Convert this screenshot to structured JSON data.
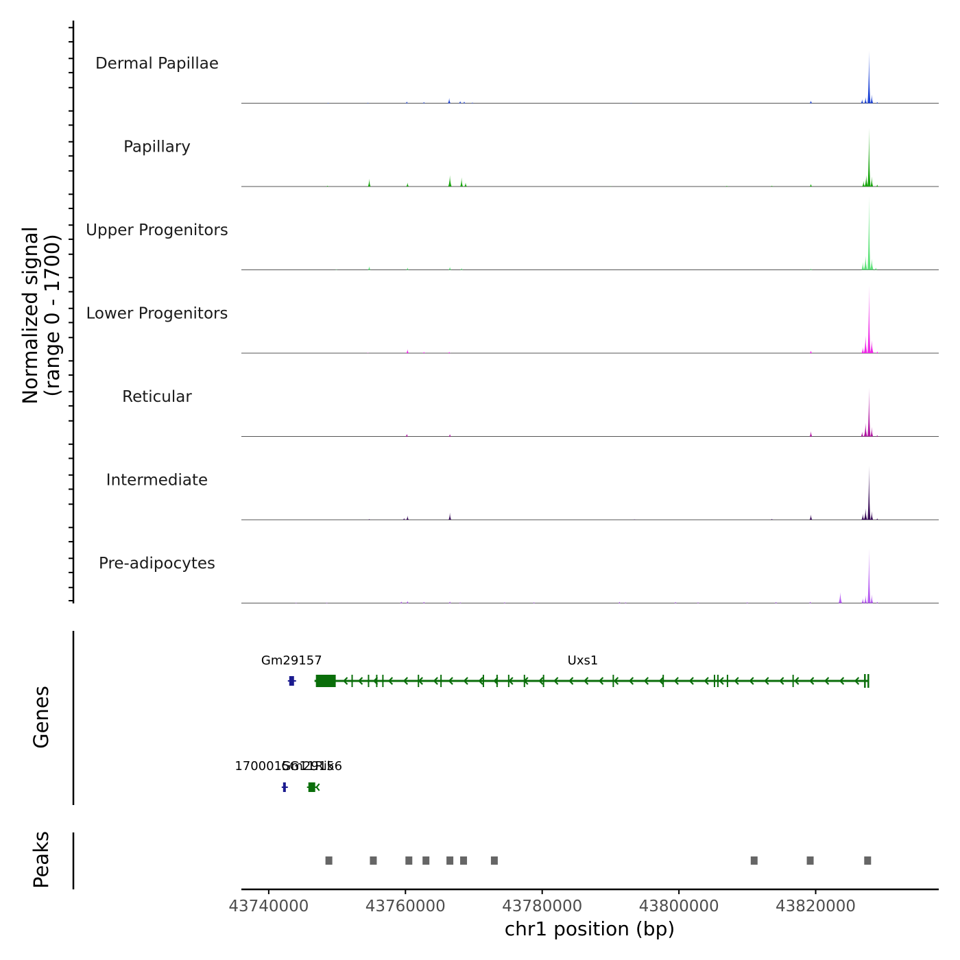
{
  "chart_data": {
    "type": "area",
    "title": "",
    "xlabel": "chr1 position (bp)",
    "ylabel_line1": "Normalized signal",
    "ylabel_line2": "(range 0 - 1700)",
    "yrange": [
      0,
      1700
    ],
    "xlim": [
      43736000,
      43838000
    ],
    "xticks": [
      43740000,
      43760000,
      43780000,
      43800000,
      43820000
    ],
    "xtick_labels": [
      "43740000",
      "43760000",
      "43780000",
      "43800000",
      "43820000"
    ],
    "tracks": [
      {
        "name": "Dermal Papillae",
        "color": "#1f45d6",
        "peaks": [
          [
            43748700,
            10
          ],
          [
            43754500,
            12
          ],
          [
            43760200,
            40
          ],
          [
            43762700,
            25
          ],
          [
            43766400,
            120
          ],
          [
            43768000,
            50
          ],
          [
            43768600,
            40
          ],
          [
            43769800,
            15
          ],
          [
            43793000,
            8
          ],
          [
            43819300,
            60
          ],
          [
            43826800,
            90
          ],
          [
            43827300,
            140
          ],
          [
            43827800,
            1200
          ],
          [
            43828200,
            200
          ],
          [
            43829000,
            25
          ]
        ]
      },
      {
        "name": "Papillary",
        "color": "#1aa510",
        "peaks": [
          [
            43748600,
            18
          ],
          [
            43754700,
            180
          ],
          [
            43760300,
            90
          ],
          [
            43766500,
            260
          ],
          [
            43768200,
            210
          ],
          [
            43768800,
            90
          ],
          [
            43790000,
            8
          ],
          [
            43807000,
            15
          ],
          [
            43813600,
            20
          ],
          [
            43819300,
            60
          ],
          [
            43827000,
            130
          ],
          [
            43827400,
            260
          ],
          [
            43827800,
            1350
          ],
          [
            43828200,
            230
          ],
          [
            43829000,
            45
          ]
        ]
      },
      {
        "name": "Upper Progenitors",
        "color": "#5ee27a",
        "peaks": [
          [
            43749900,
            12
          ],
          [
            43754700,
            80
          ],
          [
            43760300,
            50
          ],
          [
            43766500,
            70
          ],
          [
            43768200,
            40
          ],
          [
            43819300,
            25
          ],
          [
            43826900,
            180
          ],
          [
            43827300,
            320
          ],
          [
            43827800,
            1820
          ],
          [
            43828200,
            260
          ],
          [
            43828800,
            50
          ]
        ]
      },
      {
        "name": "Lower Progenitors",
        "color": "#ee2ae6",
        "peaks": [
          [
            43754500,
            8
          ],
          [
            43760300,
            90
          ],
          [
            43762700,
            30
          ],
          [
            43766400,
            30
          ],
          [
            43819300,
            60
          ],
          [
            43826900,
            140
          ],
          [
            43827300,
            400
          ],
          [
            43827800,
            1550
          ],
          [
            43828200,
            300
          ],
          [
            43829000,
            40
          ]
        ]
      },
      {
        "name": "Reticular",
        "color": "#b21aa3",
        "peaks": [
          [
            43760200,
            60
          ],
          [
            43766500,
            55
          ],
          [
            43819300,
            120
          ],
          [
            43826800,
            110
          ],
          [
            43827300,
            310
          ],
          [
            43827800,
            1120
          ],
          [
            43828200,
            220
          ],
          [
            43829000,
            30
          ]
        ]
      },
      {
        "name": "Intermediate",
        "color": "#3b0f5a",
        "peaks": [
          [
            43754700,
            15
          ],
          [
            43759800,
            40
          ],
          [
            43760300,
            95
          ],
          [
            43766500,
            165
          ],
          [
            43793500,
            10
          ],
          [
            43813600,
            20
          ],
          [
            43819300,
            120
          ],
          [
            43826900,
            140
          ],
          [
            43827300,
            260
          ],
          [
            43827800,
            1240
          ],
          [
            43828200,
            200
          ],
          [
            43829000,
            30
          ]
        ]
      },
      {
        "name": "Pre-adipocytes",
        "color": "#b65cf2",
        "peaks": [
          [
            43744000,
            10
          ],
          [
            43748500,
            12
          ],
          [
            43759400,
            35
          ],
          [
            43760300,
            50
          ],
          [
            43762700,
            30
          ],
          [
            43766500,
            40
          ],
          [
            43768000,
            20
          ],
          [
            43774500,
            20
          ],
          [
            43778800,
            20
          ],
          [
            43791300,
            30
          ],
          [
            43792200,
            20
          ],
          [
            43799500,
            25
          ],
          [
            43802800,
            20
          ],
          [
            43810000,
            20
          ],
          [
            43814200,
            25
          ],
          [
            43819200,
            30
          ],
          [
            43823600,
            250
          ],
          [
            43826900,
            110
          ],
          [
            43827300,
            180
          ],
          [
            43827800,
            1250
          ],
          [
            43828200,
            200
          ],
          [
            43829000,
            30
          ]
        ]
      }
    ],
    "genes_label": "Genes",
    "genes": [
      {
        "name": "Gm29157",
        "start": 43743000,
        "end": 43743700,
        "strand": "+",
        "row": 1,
        "color": "#1b1b8f"
      },
      {
        "name": "Uxs1",
        "start": 43746700,
        "end": 43827700,
        "strand": "-",
        "row": 1,
        "color": "#0a6e0a",
        "exons": [
          43748400,
          43752200,
          43754600,
          43755800,
          43756700,
          43761900,
          43765200,
          43771400,
          43773400,
          43775100,
          43777400,
          43780200,
          43790400,
          43797700,
          43805200,
          43805700,
          43807100,
          43816700
        ]
      },
      {
        "name": "1700015G11Rik",
        "start": 43742100,
        "end": 43742500,
        "strand": "+",
        "row": 2,
        "color": "#1b1b8f"
      },
      {
        "name": "Gm29156",
        "start": 43745800,
        "end": 43746800,
        "strand": "-",
        "row": 2,
        "color": "#0a6e0a"
      }
    ],
    "peaks_label": "Peaks",
    "peak_regions": [
      43748800,
      43755300,
      43760500,
      43763000,
      43766500,
      43768500,
      43773000,
      43811000,
      43819200,
      43827600
    ]
  }
}
